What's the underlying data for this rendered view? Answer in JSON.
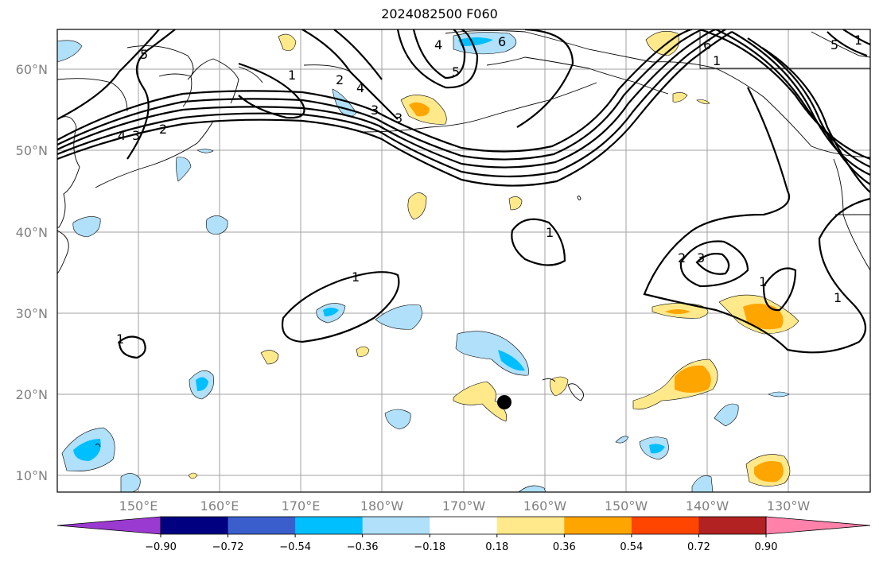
{
  "title": "2024082500 F060",
  "lat_labels": [
    "60°N",
    "50°N",
    "40°N",
    "30°N",
    "20°N",
    "10°N"
  ],
  "lon_labels": [
    "150°E",
    "160°E",
    "170°E",
    "180°W",
    "170°W",
    "160°W",
    "150°W",
    "140°W",
    "130°W"
  ],
  "colorbar": {
    "ticks": [
      "−0.90",
      "−0.72",
      "−0.54",
      "−0.36",
      "−0.18",
      "0.18",
      "0.36",
      "0.54",
      "0.72",
      "0.90"
    ],
    "colors": {
      "under": "#9a3ad0",
      "bins": [
        "#000080",
        "#3a5fcd",
        "#00bfff",
        "#b0e0fa",
        "#ffffff",
        "#ffe98a",
        "#ffa500",
        "#ff4500",
        "#b22222"
      ],
      "over": "#ff82ab"
    }
  },
  "contour_labels": [
    "5",
    "1",
    "2",
    "4",
    "3",
    "3",
    "4",
    "6",
    "5",
    "6",
    "1",
    "5",
    "1",
    "4",
    "3",
    "2",
    "1",
    "1",
    "2",
    "3",
    "1",
    "1",
    "1"
  ],
  "marker": "storm-position-dot",
  "colors": {
    "grid": "#a0a0a0",
    "tick_label": "#808080"
  }
}
